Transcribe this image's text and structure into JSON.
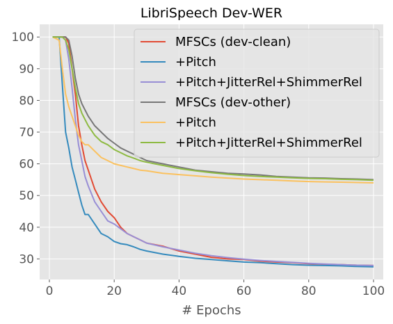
{
  "chart_data": {
    "type": "line",
    "title": "LibriSpeech Dev-WER",
    "xlabel": "# Epochs",
    "ylabel": "",
    "xlim": [
      -3,
      103
    ],
    "ylim": [
      23.5,
      104
    ],
    "xticks": [
      0,
      20,
      40,
      60,
      80,
      100
    ],
    "yticks": [
      30,
      40,
      50,
      60,
      70,
      80,
      90,
      100
    ],
    "grid": true,
    "legend": "top-right",
    "series": [
      {
        "name": "MFSCs (dev-clean)",
        "color": "#E24A33",
        "x": [
          1,
          3,
          4,
          5,
          6,
          7,
          8,
          9,
          10,
          11,
          12,
          14,
          16,
          18,
          20,
          22,
          24,
          26,
          28,
          30,
          35,
          40,
          45,
          50,
          55,
          60,
          65,
          70,
          75,
          80,
          85,
          90,
          95,
          100
        ],
        "y": [
          100,
          100,
          100,
          100,
          98,
          90,
          82,
          72,
          66,
          61,
          58,
          52,
          48,
          45,
          43,
          40,
          38,
          37,
          36,
          35,
          34,
          32.5,
          31.5,
          30.5,
          30,
          29.8,
          29.3,
          29,
          28.8,
          28.5,
          28.3,
          28.2,
          28,
          27.9
        ]
      },
      {
        "name": "+Pitch",
        "color": "#348ABD",
        "x": [
          1,
          3,
          4,
          5,
          6,
          7,
          8,
          9,
          10,
          11,
          12,
          14,
          16,
          18,
          20,
          22,
          24,
          26,
          28,
          30,
          35,
          40,
          45,
          50,
          55,
          60,
          65,
          70,
          75,
          80,
          85,
          90,
          95,
          100
        ],
        "y": [
          100,
          100,
          85,
          70,
          65,
          59,
          55,
          51,
          47,
          44,
          44,
          41,
          38,
          37,
          35.5,
          34.8,
          34.5,
          33.8,
          33,
          32.5,
          31.5,
          30.8,
          30.2,
          29.8,
          29.4,
          29,
          28.8,
          28.5,
          28.2,
          28,
          27.9,
          27.8,
          27.6,
          27.5
        ]
      },
      {
        "name": "+Pitch+JitterRel+ShimmerRel",
        "color": "#988ED5",
        "x": [
          1,
          3,
          4,
          5,
          6,
          7,
          8,
          9,
          10,
          11,
          12,
          14,
          16,
          18,
          20,
          22,
          24,
          26,
          28,
          30,
          35,
          40,
          45,
          50,
          55,
          60,
          65,
          70,
          75,
          80,
          85,
          90,
          95,
          100
        ],
        "y": [
          100,
          100,
          100,
          99,
          93,
          84,
          74,
          66,
          61,
          56,
          53,
          48,
          45,
          42,
          41,
          39.5,
          38,
          37,
          36,
          35,
          33.8,
          32.8,
          31.8,
          31,
          30.4,
          29.9,
          29.5,
          29.2,
          28.9,
          28.6,
          28.4,
          28.2,
          28,
          27.9
        ]
      },
      {
        "name": "MFSCs (dev-other)",
        "color": "#777777",
        "x": [
          1,
          3,
          4,
          5,
          6,
          7,
          8,
          9,
          10,
          11,
          12,
          14,
          16,
          18,
          20,
          22,
          24,
          26,
          28,
          30,
          35,
          40,
          45,
          50,
          55,
          60,
          65,
          70,
          75,
          80,
          85,
          90,
          95,
          100
        ],
        "y": [
          100,
          100,
          100,
          100,
          99,
          94,
          87,
          82,
          79,
          77,
          75,
          72,
          70,
          68,
          66.5,
          65,
          64,
          63,
          62,
          61,
          60,
          59,
          58,
          57.5,
          57,
          56.8,
          56.5,
          56,
          55.8,
          55.6,
          55.5,
          55.3,
          55.2,
          55
        ]
      },
      {
        "name": "+Pitch",
        "color": "#FBC15E",
        "x": [
          1,
          3,
          4,
          5,
          6,
          7,
          8,
          9,
          10,
          11,
          12,
          14,
          16,
          18,
          20,
          22,
          24,
          26,
          28,
          30,
          35,
          40,
          45,
          50,
          55,
          60,
          65,
          70,
          75,
          80,
          85,
          90,
          95,
          100
        ],
        "y": [
          100,
          99,
          90,
          82,
          78,
          75,
          72,
          69,
          67,
          66,
          66,
          64,
          62,
          61,
          60,
          59.5,
          59,
          58.5,
          58,
          57.8,
          57,
          56.6,
          56.2,
          55.8,
          55.5,
          55.2,
          55,
          54.8,
          54.6,
          54.4,
          54.3,
          54.2,
          54.1,
          54
        ]
      },
      {
        "name": "+Pitch+JitterRel+ShimmerRel",
        "color": "#8EBA42",
        "x": [
          1,
          3,
          4,
          5,
          6,
          7,
          8,
          9,
          10,
          11,
          12,
          14,
          16,
          18,
          20,
          22,
          24,
          26,
          28,
          30,
          35,
          40,
          45,
          50,
          55,
          60,
          65,
          70,
          75,
          80,
          85,
          90,
          95,
          100
        ],
        "y": [
          100,
          100,
          100,
          99,
          96,
          90,
          84,
          79,
          76,
          74,
          72,
          69,
          67,
          66,
          64.5,
          63.5,
          62.5,
          61.8,
          61,
          60.5,
          59.5,
          58.5,
          57.8,
          57.2,
          56.7,
          56.3,
          56,
          55.8,
          55.6,
          55.4,
          55.3,
          55.1,
          55,
          54.8
        ]
      }
    ]
  }
}
